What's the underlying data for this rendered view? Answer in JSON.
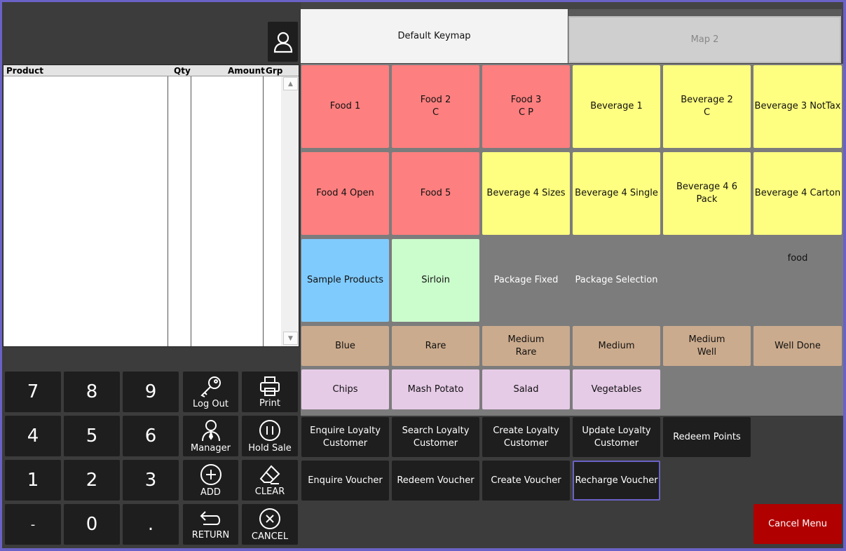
{
  "tabs": {
    "default": "Default Keymap",
    "map2": "Map 2"
  },
  "order_list": {
    "headers": {
      "product": "Product",
      "qty": "Qty",
      "amount": "Amount",
      "grp": "Grp"
    },
    "scroll_up": "▲",
    "scroll_down": "▼"
  },
  "keypad": {
    "k7": "7",
    "k8": "8",
    "k9": "9",
    "k4": "4",
    "k5": "5",
    "k6": "6",
    "k1": "1",
    "k2": "2",
    "k3": "3",
    "kminus": "-",
    "k0": "0",
    "kdot": "."
  },
  "functions": {
    "logout": "Log Out",
    "print": "Print",
    "manager": "Manager",
    "hold": "Hold Sale",
    "add": "ADD",
    "clear": "CLEAR",
    "return": "RETURN",
    "cancel": "CANCEL"
  },
  "products": {
    "food1": "Food 1",
    "food2": "Food 2\nC",
    "food3": "Food 3\nC P",
    "bev1": "Beverage 1",
    "bev2": "Beverage 2\nC",
    "bev3": "Beverage 3 NotTax",
    "food4": "Food 4 Open",
    "food5": "Food 5",
    "bev4sizes": "Beverage 4 Sizes",
    "bev4single": "Beverage 4 Single",
    "bev46pack": "Beverage 4 6\nPack",
    "bev4carton": "Beverage 4 Carton",
    "sample": "Sample Products",
    "sirloin": "Sirloin",
    "pkgfixed": "Package Fixed",
    "pkgsel": "Package Selection",
    "food": "food",
    "blue": "Blue",
    "rare": "Rare",
    "medrare": "Medium\nRare",
    "medium": "Medium",
    "medwell": "Medium\nWell",
    "welldone": "Well Done",
    "chips": "Chips",
    "mash": "Mash Potato",
    "salad": "Salad",
    "veg": "Vegetables"
  },
  "actions": {
    "enquire_loyalty": "Enquire Loyalty\nCustomer",
    "search_loyalty": "Search Loyalty\nCustomer",
    "create_loyalty": "Create Loyalty\nCustomer",
    "update_loyalty": "Update Loyalty\nCustomer",
    "redeem_points": "Redeem Points",
    "enquire_voucher": "Enquire Voucher",
    "redeem_voucher": "Redeem Voucher",
    "create_voucher": "Create Voucher",
    "recharge_voucher": "Recharge Voucher",
    "cancel_menu": "Cancel Menu"
  },
  "colors": {
    "food": "#fe7f7f",
    "beverage": "#fefe80",
    "sample": "#80cbfd",
    "sirloin": "#cbfdcc",
    "cooking": "#cbab8d",
    "sides": "#e6cbe7",
    "action": "#1e1e1e",
    "cancel_menu": "#b00000",
    "window_border": "#6a62c6"
  },
  "icons": [
    "user-icon",
    "key-icon",
    "printer-icon",
    "manager-icon",
    "pause-icon",
    "plus-circle-icon",
    "eraser-icon",
    "return-icon",
    "x-circle-icon"
  ]
}
